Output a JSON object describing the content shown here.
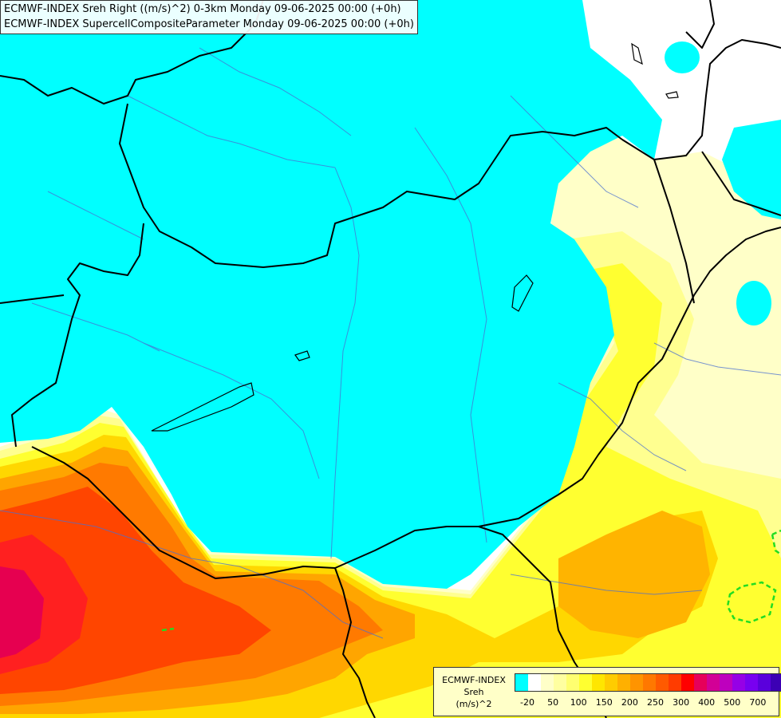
{
  "header": {
    "line1": "ECMWF-INDEX Sreh Right ((m/s)^2) 0-3km Monday 09-06-2025 00:00 (+0h)",
    "line2": "ECMWF-INDEX SupercellCompositeParameter Monday 09-06-2025 00:00 (+0h)"
  },
  "legend": {
    "title_line1": "ECMWF-INDEX",
    "title_line2": "Sreh",
    "title_line3": "(m/s)^2",
    "swatch_colors": [
      "#00ffff",
      "#ffffff",
      "#ffffc8",
      "#ffffa0",
      "#ffff70",
      "#ffff30",
      "#ffe600",
      "#ffcc00",
      "#ffb000",
      "#ff9400",
      "#ff7800",
      "#ff5a00",
      "#ff3c00",
      "#ff0000",
      "#e6005a",
      "#d20096",
      "#be00be",
      "#9600e6",
      "#7800f0",
      "#5a00dc",
      "#3c00b4",
      "#1e0096"
    ],
    "ticks": [
      "-20",
      "50",
      "100",
      "150",
      "200",
      "250",
      "300",
      "400",
      "500",
      "700"
    ]
  },
  "map": {
    "colors": {
      "cyan": "#00ffff",
      "white": "#ffffff",
      "pale_yellow": "#ffffc8",
      "light_yellow": "#ffff90",
      "yellow": "#ffff30",
      "gold": "#ffd700",
      "orange": "#ffa500",
      "dark_orange": "#ff7a00",
      "red_orange": "#ff4500",
      "red": "#ff2020",
      "crimson": "#e60050",
      "border_line": "#000000",
      "river_line": "#4a6fd0",
      "contour_green": "#22dd22"
    },
    "icons": [
      "country-border",
      "river",
      "supercell-contour"
    ]
  }
}
